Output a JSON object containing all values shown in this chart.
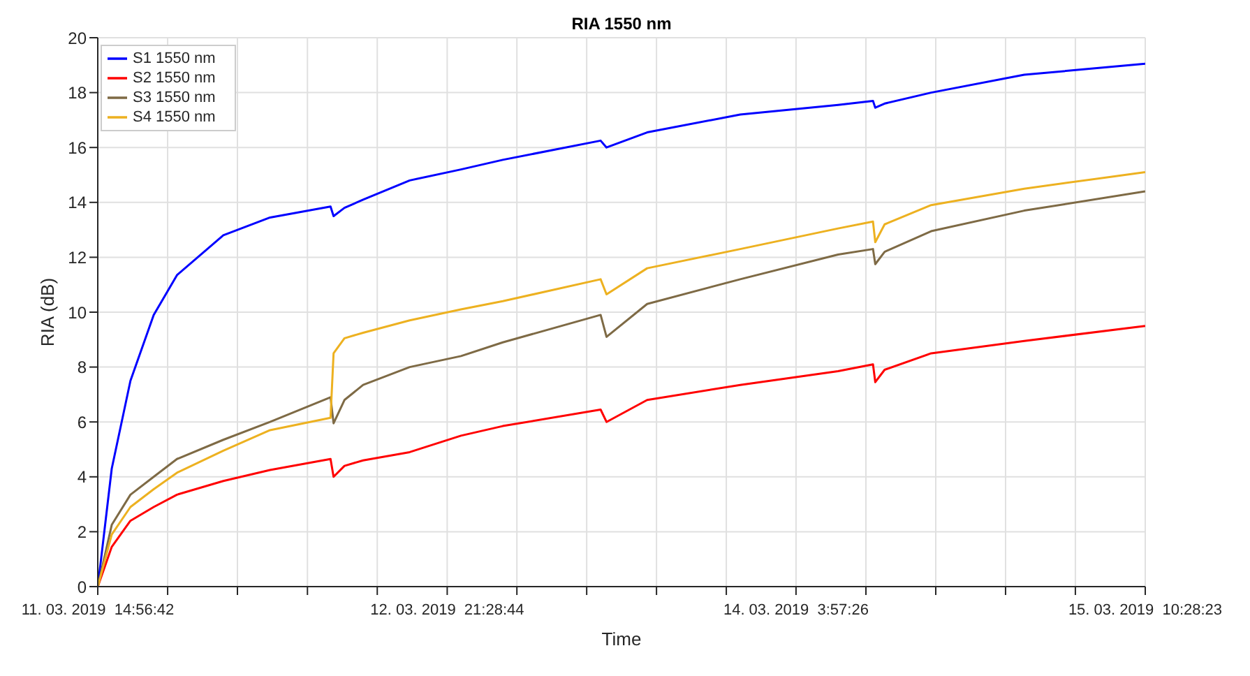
{
  "chart_data": {
    "type": "line",
    "title": "RIA 1550 nm",
    "xlabel": "Time",
    "ylabel": "RIA (dB)",
    "x": [
      "2019-03-11T14:57",
      "2019-03-11T16:10",
      "2019-03-11T17:48",
      "2019-03-11T19:50",
      "2019-03-11T21:52",
      "2019-03-12T01:55",
      "2019-03-12T06:00",
      "2019-03-12T11:17",
      "2019-03-12T11:33",
      "2019-03-12T12:30",
      "2019-03-12T14:08",
      "2019-03-12T18:12",
      "2019-03-12T22:41",
      "2019-03-13T02:20",
      "2019-03-13T10:53",
      "2019-03-13T11:24",
      "2019-03-13T14:57",
      "2019-03-13T23:05",
      "2019-03-14T07:38",
      "2019-03-14T10:41",
      "2019-03-14T10:53",
      "2019-03-14T11:42",
      "2019-03-14T15:46",
      "2019-03-14T23:54",
      "2019-03-15T10:28"
    ],
    "series": [
      {
        "name": "S1 1550 nm",
        "color": "#0000ff",
        "values": [
          0,
          4.3,
          7.5,
          9.9,
          11.35,
          12.8,
          13.45,
          13.85,
          13.5,
          13.8,
          14.1,
          14.8,
          15.2,
          15.55,
          16.25,
          16.0,
          16.55,
          17.2,
          17.55,
          17.7,
          17.45,
          17.6,
          18.0,
          18.65,
          19.05
        ]
      },
      {
        "name": "S2 1550 nm",
        "color": "#ff0000",
        "values": [
          0,
          1.45,
          2.4,
          2.9,
          3.35,
          3.85,
          4.25,
          4.65,
          4.0,
          4.4,
          4.6,
          4.9,
          5.5,
          5.85,
          6.45,
          6.0,
          6.8,
          7.35,
          7.85,
          8.1,
          7.45,
          7.9,
          8.5,
          8.95,
          9.5
        ]
      },
      {
        "name": "S3 1550 nm",
        "color": "#7e6a45",
        "values": [
          0,
          2.25,
          3.35,
          4.0,
          4.65,
          5.35,
          6.0,
          6.9,
          5.95,
          6.8,
          7.35,
          8.0,
          8.4,
          8.9,
          9.9,
          9.1,
          10.3,
          11.2,
          12.1,
          12.3,
          11.75,
          12.2,
          12.95,
          13.7,
          14.4
        ]
      },
      {
        "name": "S4 1550 nm",
        "color": "#edb120",
        "values": [
          0,
          1.9,
          2.9,
          3.55,
          4.15,
          4.95,
          5.7,
          6.15,
          8.5,
          9.05,
          9.25,
          9.7,
          10.1,
          10.4,
          11.2,
          10.65,
          11.6,
          12.3,
          13.05,
          13.3,
          12.55,
          13.2,
          13.9,
          14.5,
          15.1
        ]
      }
    ],
    "xlim": [
      "2019-03-11T14:56:42",
      "2019-03-15T10:28:23"
    ],
    "xticks": [
      {
        "value": "2019-03-11T14:56:42",
        "label": "11. 03. 2019  14:56:42"
      },
      {
        "value": "2019-03-11T21:03",
        "label": null
      },
      {
        "value": "2019-03-12T03:09",
        "label": null
      },
      {
        "value": "2019-03-12T09:16",
        "label": null
      },
      {
        "value": "2019-03-12T15:22",
        "label": null
      },
      {
        "value": "2019-03-12T21:28:44",
        "label": "12. 03. 2019  21:28:44"
      },
      {
        "value": "2019-03-13T03:34",
        "label": null
      },
      {
        "value": "2019-03-13T09:40",
        "label": null
      },
      {
        "value": "2019-03-13T15:46",
        "label": null
      },
      {
        "value": "2019-03-13T21:52",
        "label": null
      },
      {
        "value": "2019-03-14T03:57:26",
        "label": "14. 03. 2019  3:57:26"
      },
      {
        "value": "2019-03-14T10:04",
        "label": null
      },
      {
        "value": "2019-03-14T16:10",
        "label": null
      },
      {
        "value": "2019-03-14T22:16",
        "label": null
      },
      {
        "value": "2019-03-15T04:22",
        "label": null
      },
      {
        "value": "2019-03-15T10:28:23",
        "label": "15. 03. 2019  10:28:23"
      }
    ],
    "ylim": [
      0,
      20
    ],
    "yticks": [
      0,
      2,
      4,
      6,
      8,
      10,
      12,
      14,
      16,
      18,
      20
    ],
    "grid": true,
    "legend": "top left",
    "marker": "none",
    "line_style": "solid"
  }
}
